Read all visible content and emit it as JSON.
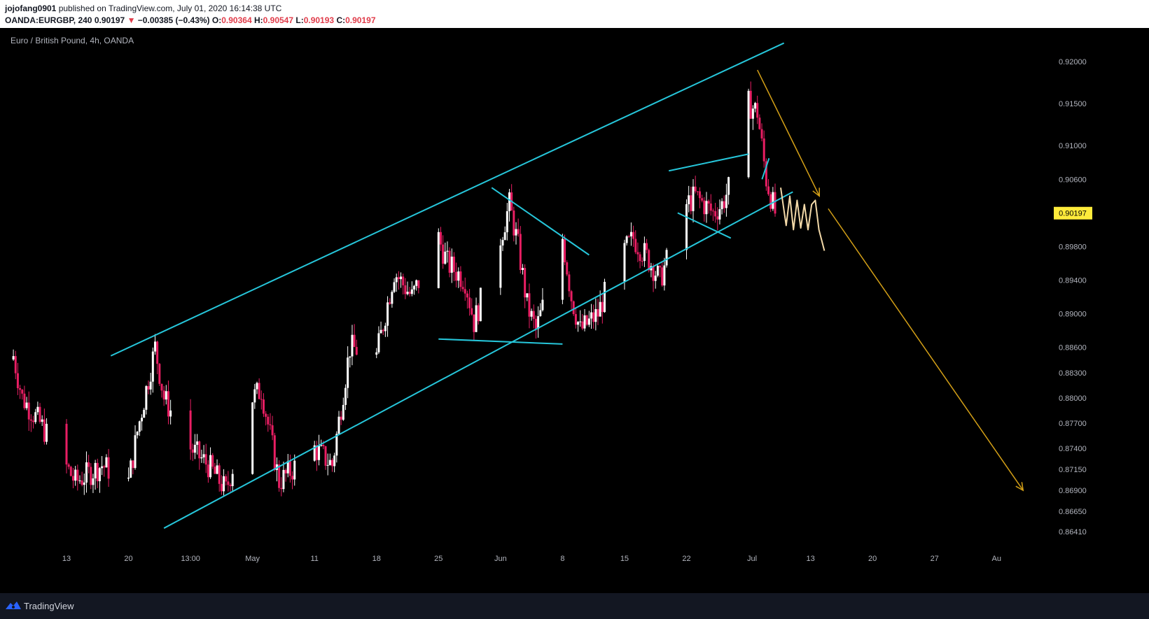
{
  "header": {
    "author": "jojofang0901",
    "published": "published on TradingView.com, July 01, 2020 16:14:38 UTC",
    "symbol": "OANDA:EURGBP, 240",
    "last": "0.90197",
    "change_arrow": "▼",
    "change": "−0.00385 (−0.43%)",
    "o_label": "O:",
    "o_value": "0.90364",
    "h_label": "H:",
    "h_value": "0.90547",
    "l_label": "L:",
    "l_value": "0.90193",
    "c_label": "C:",
    "c_value": "0.90197"
  },
  "chart_title": "Euro / British Pound, 4h, OANDA",
  "footer": {
    "brand": "TradingView",
    "logo_icon": "tradingview-logo-icon"
  },
  "colors": {
    "background": "#000000",
    "up_candle": "#ffffff",
    "down_candle": "#e91e63",
    "trendline": "#26c6da",
    "projection": "#d4a017",
    "price_label_bg": "#ffeb3b"
  },
  "chart_data": {
    "type": "candlestick",
    "title": "Euro / British Pound, 4h, OANDA",
    "ylim": [
      0.8625,
      0.9235
    ],
    "y_ticks": [
      "0.92000",
      "0.91500",
      "0.91000",
      "0.90600",
      "0.89800",
      "0.89400",
      "0.89000",
      "0.88600",
      "0.88300",
      "0.88000",
      "0.87700",
      "0.87400",
      "0.87150",
      "0.86900",
      "0.86650",
      "0.86410"
    ],
    "x_ticks": [
      "13",
      "20",
      "13:00",
      "May",
      "11",
      "18",
      "25",
      "Jun",
      "8",
      "15",
      "22",
      "Jul",
      "13",
      "20",
      "27",
      "Au"
    ],
    "last_price": "0.90197",
    "anchors": [
      {
        "date": "2020-04-07",
        "price": 0.885
      },
      {
        "date": "2020-04-08",
        "price": 0.88
      },
      {
        "date": "2020-04-10",
        "price": 0.877
      },
      {
        "date": "2020-04-14",
        "price": 0.87
      },
      {
        "date": "2020-04-17",
        "price": 0.872
      },
      {
        "date": "2020-04-20",
        "price": 0.87
      },
      {
        "date": "2020-04-21",
        "price": 0.876
      },
      {
        "date": "2020-04-23",
        "price": 0.886
      },
      {
        "date": "2020-04-24",
        "price": 0.88
      },
      {
        "date": "2020-04-27",
        "price": 0.874
      },
      {
        "date": "2020-04-29",
        "price": 0.872
      },
      {
        "date": "2020-05-01",
        "price": 0.869
      },
      {
        "date": "2020-05-04",
        "price": 0.88
      },
      {
        "date": "2020-05-05",
        "price": 0.881
      },
      {
        "date": "2020-05-07",
        "price": 0.87
      },
      {
        "date": "2020-05-11",
        "price": 0.874
      },
      {
        "date": "2020-05-13",
        "price": 0.872
      },
      {
        "date": "2020-05-15",
        "price": 0.886
      },
      {
        "date": "2020-05-18",
        "price": 0.885
      },
      {
        "date": "2020-05-20",
        "price": 0.895
      },
      {
        "date": "2020-05-22",
        "price": 0.892
      },
      {
        "date": "2020-05-25",
        "price": 0.899
      },
      {
        "date": "2020-05-26",
        "price": 0.896
      },
      {
        "date": "2020-05-28",
        "price": 0.894
      },
      {
        "date": "2020-05-29",
        "price": 0.889
      },
      {
        "date": "2020-06-01",
        "price": 0.899
      },
      {
        "date": "2020-06-02",
        "price": 0.903
      },
      {
        "date": "2020-06-03",
        "price": 0.898
      },
      {
        "date": "2020-06-04",
        "price": 0.891
      },
      {
        "date": "2020-06-05",
        "price": 0.888
      },
      {
        "date": "2020-06-08",
        "price": 0.899
      },
      {
        "date": "2020-06-09",
        "price": 0.892
      },
      {
        "date": "2020-06-10",
        "price": 0.888
      },
      {
        "date": "2020-06-12",
        "price": 0.89
      },
      {
        "date": "2020-06-14",
        "price": 0.896
      },
      {
        "date": "2020-06-16",
        "price": 0.899
      },
      {
        "date": "2020-06-18",
        "price": 0.896
      },
      {
        "date": "2020-06-19",
        "price": 0.894
      },
      {
        "date": "2020-06-22",
        "price": 0.903
      },
      {
        "date": "2020-06-23",
        "price": 0.904
      },
      {
        "date": "2020-06-25",
        "price": 0.902
      },
      {
        "date": "2020-06-26",
        "price": 0.903
      },
      {
        "date": "2020-06-28",
        "price": 0.908
      },
      {
        "date": "2020-06-29",
        "price": 0.915
      },
      {
        "date": "2020-06-30",
        "price": 0.914
      },
      {
        "date": "2020-07-01",
        "price": 0.906
      },
      {
        "date": "2020-07-02",
        "price": 0.902
      }
    ],
    "trendlines": [
      {
        "name": "channel-top",
        "from": [
          "2020-04-18",
          0.885
        ],
        "to": [
          "2020-07-03",
          0.9222
        ]
      },
      {
        "name": "channel-bottom",
        "from": [
          "2020-04-24",
          0.8645
        ],
        "to": [
          "2020-07-04",
          0.9045
        ]
      },
      {
        "name": "triangle-top",
        "from": [
          "2020-05-31",
          0.905
        ],
        "to": [
          "2020-06-11",
          0.897
        ]
      },
      {
        "name": "triangle-bottom",
        "from": [
          "2020-05-25",
          0.887
        ],
        "to": [
          "2020-06-08",
          0.8864
        ]
      },
      {
        "name": "wedge-top",
        "from": [
          "2020-06-20",
          0.907
        ],
        "to": [
          "2020-06-29",
          0.909
        ]
      },
      {
        "name": "wedge-bottom",
        "from": [
          "2020-06-21",
          0.902
        ],
        "to": [
          "2020-06-27",
          0.899
        ]
      }
    ],
    "projections": [
      {
        "name": "arrow-1",
        "from": [
          "2020-06-30",
          0.919
        ],
        "to": [
          "2020-07-07",
          0.904
        ]
      },
      {
        "name": "arrow-2",
        "from": [
          "2020-07-08",
          0.9025
        ],
        "to": [
          "2020-07-30",
          0.869
        ]
      }
    ]
  }
}
